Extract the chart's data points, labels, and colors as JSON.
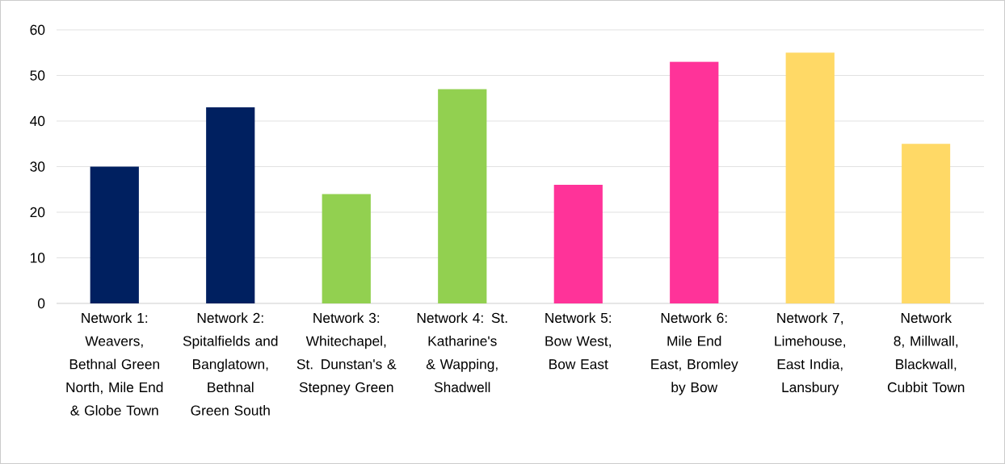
{
  "chart_data": {
    "type": "bar",
    "categories": [
      "Network 1: Weavers, Bethnal Green North, Mile End & Globe Town",
      "Network 2: Spitalfields and Banglatown, Bethnal Green South",
      "Network 3: Whitechapel, St. Dunstan's & Stepney Green",
      "Network 4: St. Katharine's & Wapping, Shadwell",
      "Network 5: Bow West, Bow East",
      "Network 6: Mile End East, Bromley by Bow",
      "Network 7, Limehouse, East India, Lansbury",
      "Network 8, Millwall, Blackwall, Cubbit Town"
    ],
    "values": [
      30,
      43,
      24,
      47,
      26,
      53,
      55,
      35
    ],
    "colors": [
      "#002060",
      "#002060",
      "#92d050",
      "#92d050",
      "#ff3399",
      "#ff3399",
      "#ffd966",
      "#ffd966"
    ],
    "ylim": [
      0,
      60
    ],
    "yticks": [
      0,
      10,
      20,
      30,
      40,
      50,
      60
    ],
    "grid": "y"
  }
}
